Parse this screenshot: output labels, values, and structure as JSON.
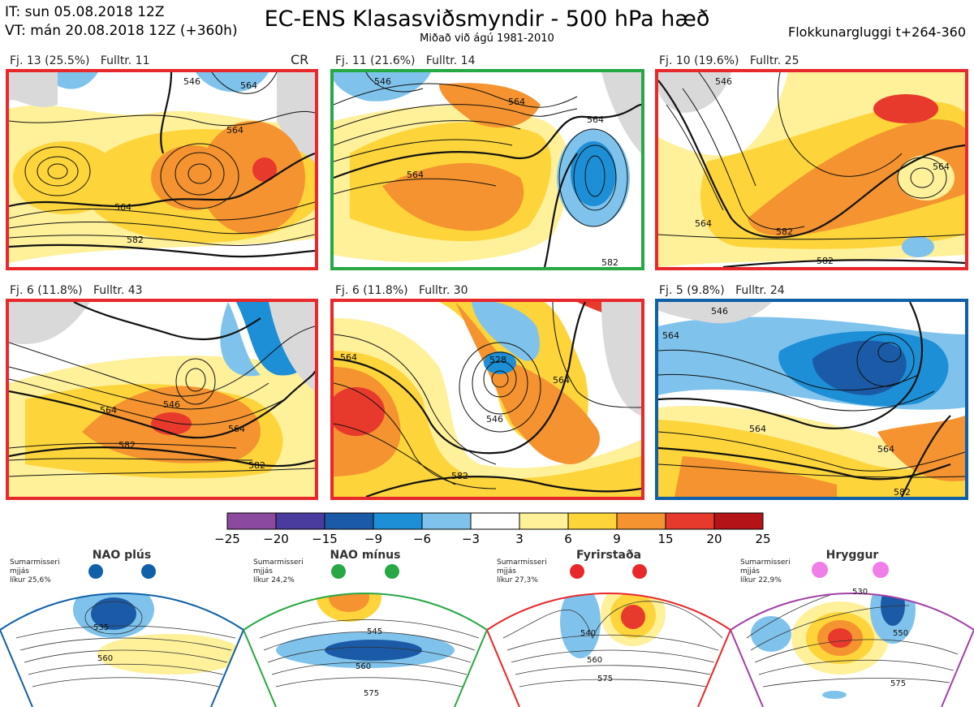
{
  "header": {
    "line1": "IT: sun 05.08.2018 12Z",
    "line2": "VT: mán 20.08.2018 12Z  (+360h)",
    "title": "EC-ENS Klasasviðsmyndir - 500 hPa hæð",
    "subtitle": "Miðað við ágú 1981-2010",
    "right": "Flokkunargluggi t+264-360"
  },
  "panels": [
    {
      "freq": "Fj. 13 (25.5%)",
      "rep": "Fulltr. 11",
      "tag": "CR",
      "frame": "#e8282a",
      "contours": [
        "564",
        "546",
        "564",
        "564",
        "582"
      ]
    },
    {
      "freq": "Fj. 11 (21.6%)",
      "rep": "Fulltr. 14",
      "tag": "",
      "frame": "#27a844",
      "contours": [
        "546",
        "564",
        "564",
        "564",
        "582"
      ]
    },
    {
      "freq": "Fj. 10 (19.6%)",
      "rep": "Fulltr. 25",
      "tag": "",
      "frame": "#e8282a",
      "contours": [
        "546",
        "564",
        "564",
        "582",
        "582"
      ]
    },
    {
      "freq": "Fj. 6 (11.8%)",
      "rep": "Fulltr. 43",
      "tag": "",
      "frame": "#e8282a",
      "contours": [
        "564",
        "546",
        "564",
        "582",
        "582"
      ]
    },
    {
      "freq": "Fj. 6 (11.8%)",
      "rep": "Fulltr. 30",
      "tag": "",
      "frame": "#e8282a",
      "contours": [
        "564",
        "528",
        "546",
        "564",
        "582"
      ]
    },
    {
      "freq": "Fj. 5 (9.8%)",
      "rep": "Fulltr. 24",
      "tag": "",
      "frame": "#1060a8",
      "contours": [
        "564",
        "546",
        "564",
        "564",
        "582"
      ]
    }
  ],
  "colorbar": {
    "colors": [
      "#8c4a9e",
      "#4a3b9e",
      "#1b5aa6",
      "#1d8fd6",
      "#7fc3ec",
      "#ffffff",
      "#fff09a",
      "#fdd43a",
      "#f4932f",
      "#e83a2c",
      "#b41418"
    ],
    "ticks": [
      "−25",
      "−20",
      "−15",
      "−9",
      "−6",
      "−3",
      "3",
      "6",
      "9",
      "15",
      "20",
      "25"
    ]
  },
  "regimes": [
    {
      "name": "NAO plús",
      "season": "Sumarmisseri",
      "smooth": "mjjás",
      "prob": "líkur 25,6%",
      "color": "#1060a8",
      "contours": [
        "535",
        "560"
      ]
    },
    {
      "name": "NAO mínus",
      "season": "Sumarmisseri",
      "smooth": "mjjás",
      "prob": "líkur 24,2%",
      "color": "#27a844",
      "contours": [
        "545",
        "560",
        "575"
      ]
    },
    {
      "name": "Fyrirstaða",
      "season": "Sumarmisseri",
      "smooth": "mjjás",
      "prob": "líkur 27,3%",
      "color": "#e8282a",
      "contours": [
        "540",
        "560",
        "575"
      ]
    },
    {
      "name": "Hryggur",
      "season": "Sumarmisseri",
      "smooth": "mjjás",
      "prob": "líkur 22,9%",
      "color": "#a23fa8",
      "contours": [
        "530",
        "550",
        "575"
      ]
    }
  ]
}
